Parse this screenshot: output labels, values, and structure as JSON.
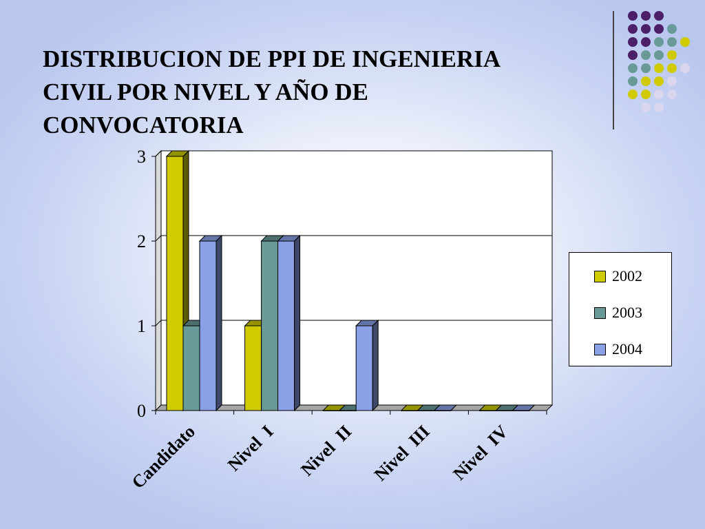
{
  "slide": {
    "title": "DISTRIBUCION DE PPI DE INGENIERIA\nCIVIL POR NIVEL Y AÑO DE\nCONVOCATORIA"
  },
  "colors": {
    "purple": "#4b2068",
    "teal": "#6a9a98",
    "yellow": "#cfcb00",
    "lavender": "#d9d6ee",
    "series_2002": "#cfcb00",
    "series_2003": "#6a9a98",
    "series_2004": "#8aa1e8"
  },
  "decor": {
    "dot_rows": [
      [
        "purple",
        "purple",
        "purple"
      ],
      [
        "purple",
        "purple",
        "purple",
        "teal"
      ],
      [
        "purple",
        "purple",
        "teal",
        "teal",
        "yellow"
      ],
      [
        "purple",
        "teal",
        "teal",
        "yellow"
      ],
      [
        "teal",
        "teal",
        "yellow",
        "yellow",
        "lavender"
      ],
      [
        "teal",
        "yellow",
        "yellow",
        "lavender"
      ],
      [
        "yellow",
        "yellow",
        "lavender",
        "lavender"
      ],
      [
        "lavender",
        "lavender"
      ]
    ]
  },
  "chart_data": {
    "type": "bar",
    "title": "",
    "xlabel": "",
    "ylabel": "",
    "categories": [
      "Candidato",
      "Nivel  I",
      "Nivel  II",
      "Nivel  III",
      "Nivel  IV"
    ],
    "series": [
      {
        "name": "2002",
        "values": [
          3,
          1,
          0,
          0,
          0
        ]
      },
      {
        "name": "2003",
        "values": [
          1,
          2,
          0,
          0,
          0
        ]
      },
      {
        "name": "2004",
        "values": [
          2,
          2,
          1,
          0,
          0
        ]
      }
    ],
    "ylim": [
      0,
      3
    ],
    "yticks": [
      "0",
      "1",
      "2",
      "3"
    ],
    "grid": true,
    "style": "3d",
    "legend_position": "right"
  }
}
